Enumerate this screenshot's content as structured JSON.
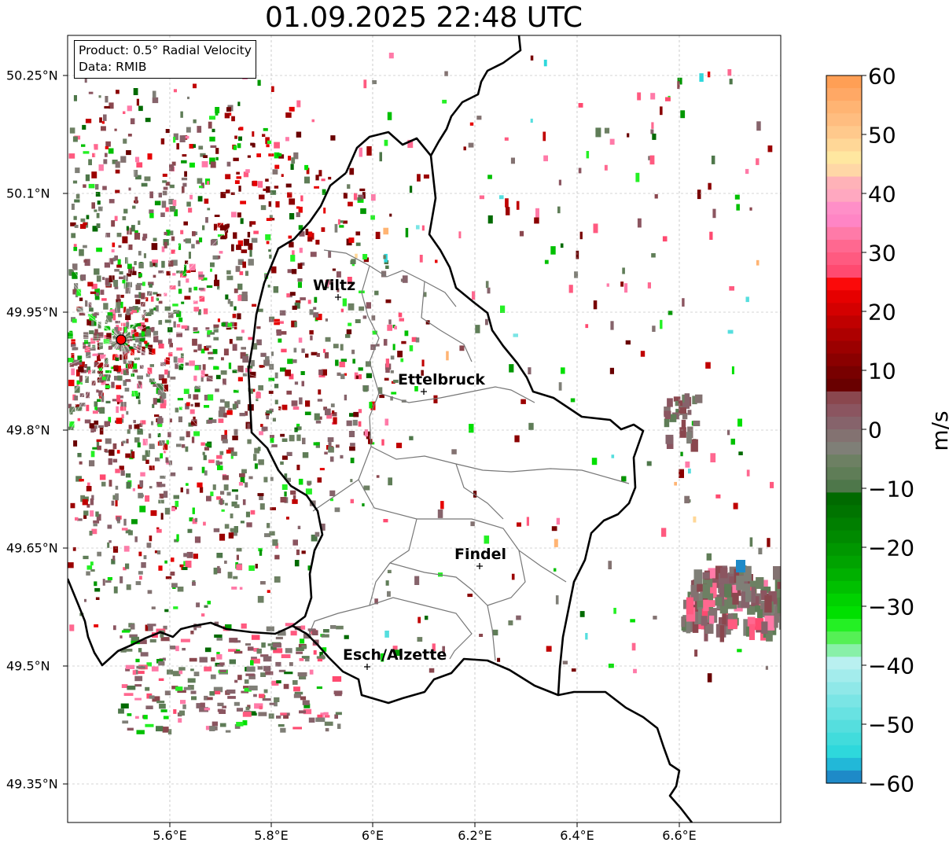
{
  "title": "01.09.2025 22:48 UTC",
  "info_box": {
    "product": "Product: 0.5° Radial Velocity",
    "data": "Data: RMIB"
  },
  "colorbar": {
    "title": "m/s",
    "vmin": -60,
    "vmax": 60,
    "ticks": [
      "60",
      "50",
      "40",
      "30",
      "20",
      "10",
      "0",
      "−10",
      "−20",
      "−30",
      "−40",
      "−50",
      "−60"
    ],
    "bands_top_to_bottom": [
      "#ff9f55",
      "#ffa865",
      "#ffb473",
      "#ffbd80",
      "#ffc98c",
      "#ffd797",
      "#ffe7a0",
      "#ffd7a6",
      "#ffb2b8",
      "#ffa8c0",
      "#ff8fc8",
      "#ff85c5",
      "#ff7aa8",
      "#ff6890",
      "#ff5a80",
      "#ff4a70",
      "#fb0a0a",
      "#e60000",
      "#d40000",
      "#c00000",
      "#ad0000",
      "#9b0000",
      "#8a0000",
      "#780000",
      "#690000",
      "#8a474e",
      "#8b5560",
      "#86636b",
      "#837271",
      "#7f7f77",
      "#6d8063",
      "#5f7d57",
      "#4e774a",
      "#006a00",
      "#007400",
      "#007f00",
      "#008a00",
      "#009700",
      "#00a300",
      "#00b000",
      "#00c000",
      "#00d200",
      "#00e000",
      "#24f024",
      "#55f055",
      "#88f0a8",
      "#b9f0f0",
      "#a3ecec",
      "#8fe8e8",
      "#7ae5e5",
      "#68e2e2",
      "#55dede",
      "#41dcdc",
      "#2ed8dc",
      "#22b8d8",
      "#1e8ac8"
    ]
  },
  "axes": {
    "lat_ticks": [
      "50.25°N",
      "50.1°N",
      "49.95°N",
      "49.8°N",
      "49.65°N",
      "49.5°N",
      "49.35°N"
    ],
    "lon_ticks": [
      "5.6°E",
      "5.8°E",
      "6°E",
      "6.2°E",
      "6.4°E",
      "6.6°E"
    ]
  },
  "cities": [
    {
      "name": "Wiltz"
    },
    {
      "name": "Ettelbruck"
    },
    {
      "name": "Findel"
    },
    {
      "name": "Esch/Alzette"
    }
  ],
  "radar_site_color": "#ff0000"
}
